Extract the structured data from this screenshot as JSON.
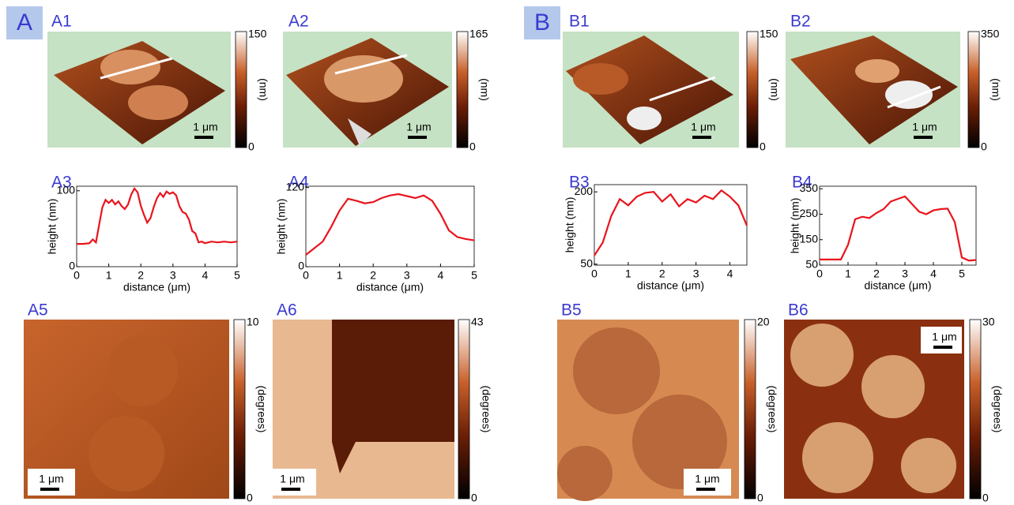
{
  "groups": [
    {
      "label": "A"
    },
    {
      "label": "B"
    }
  ],
  "panels": [
    {
      "label": "A1",
      "colorbar": {
        "max": 150,
        "min": 0,
        "unit": "(nm)"
      },
      "scale_bar": "1 μm"
    },
    {
      "label": "A2",
      "colorbar": {
        "max": 165,
        "min": 0,
        "unit": "(nm)"
      },
      "scale_bar": "1 μm"
    },
    {
      "label": "B1",
      "colorbar": {
        "max": 150,
        "min": 0,
        "unit": "(nm)"
      },
      "scale_bar": "1 μm"
    },
    {
      "label": "B2",
      "colorbar": {
        "max": 350,
        "min": 0,
        "unit": "(nm)"
      },
      "scale_bar": "1 μm"
    },
    {
      "label": "A5",
      "colorbar": {
        "max": 10,
        "min": 0,
        "unit": "(degrees)"
      },
      "scale_bar": "1 μm"
    },
    {
      "label": "A6",
      "colorbar": {
        "max": 43,
        "min": 0,
        "unit": "(degrees)"
      },
      "scale_bar": "1 μm"
    },
    {
      "label": "B5",
      "colorbar": {
        "max": 20,
        "min": 0,
        "unit": "(degrees)"
      },
      "scale_bar": "1 μm"
    },
    {
      "label": "B6",
      "colorbar": {
        "max": 30,
        "min": 0,
        "unit": "(degrees)"
      },
      "scale_bar": "1 μm"
    }
  ],
  "chart_data": [
    {
      "type": "line",
      "label": "A3",
      "xlabel": "distance (μm)",
      "ylabel": "height (nm)",
      "x": [
        0,
        0.2,
        0.4,
        0.5,
        0.6,
        0.7,
        0.8,
        0.9,
        1.0,
        1.1,
        1.2,
        1.3,
        1.4,
        1.5,
        1.6,
        1.7,
        1.8,
        1.9,
        2.0,
        2.1,
        2.2,
        2.3,
        2.4,
        2.5,
        2.6,
        2.7,
        2.8,
        2.9,
        3.0,
        3.1,
        3.2,
        3.3,
        3.4,
        3.5,
        3.6,
        3.7,
        3.8,
        3.9,
        4.0,
        4.2,
        4.4,
        4.6,
        4.8,
        5.0
      ],
      "series": [
        {
          "color": "#e8141c",
          "values": [
            30,
            30,
            31,
            36,
            32,
            55,
            78,
            88,
            84,
            88,
            82,
            86,
            80,
            76,
            82,
            95,
            103,
            98,
            80,
            68,
            58,
            64,
            78,
            90,
            97,
            92,
            99,
            96,
            98,
            94,
            80,
            72,
            70,
            62,
            47,
            44,
            32,
            33,
            31,
            33,
            32,
            33,
            32,
            33
          ]
        }
      ],
      "xlim": [
        0,
        5
      ],
      "ylim": [
        0,
        106
      ],
      "xticks": [
        0,
        1,
        2,
        3,
        4,
        5
      ],
      "yticks": [
        0,
        100
      ]
    },
    {
      "type": "line",
      "label": "A4",
      "xlabel": "distance (μm)",
      "ylabel": "height (nm)",
      "x": [
        0,
        0.25,
        0.5,
        0.75,
        1,
        1.25,
        1.5,
        1.75,
        2,
        2.25,
        2.5,
        2.75,
        3,
        3.25,
        3.5,
        3.75,
        4,
        4.25,
        4.5,
        4.75,
        5
      ],
      "series": [
        {
          "color": "#e8141c",
          "values": [
            18,
            28,
            38,
            60,
            85,
            103,
            100,
            96,
            98,
            104,
            108,
            110,
            107,
            104,
            108,
            100,
            80,
            55,
            45,
            42,
            40
          ]
        }
      ],
      "xlim": [
        0,
        5
      ],
      "ylim": [
        0,
        122
      ],
      "xticks": [
        0,
        1,
        2,
        3,
        4,
        5
      ],
      "yticks": [
        0,
        120
      ]
    },
    {
      "type": "line",
      "label": "B3",
      "xlabel": "distance (μm)",
      "ylabel": "height (nm)",
      "x": [
        0,
        0.25,
        0.5,
        0.75,
        1,
        1.25,
        1.5,
        1.75,
        2,
        2.25,
        2.5,
        2.75,
        3,
        3.25,
        3.5,
        3.75,
        4,
        4.25,
        4.5
      ],
      "series": [
        {
          "color": "#e8141c",
          "values": [
            68,
            95,
            150,
            185,
            172,
            190,
            198,
            200,
            180,
            195,
            170,
            185,
            178,
            192,
            185,
            203,
            190,
            172,
            130
          ]
        }
      ],
      "xlim": [
        0,
        4.5
      ],
      "ylim": [
        48,
        215
      ],
      "xticks": [
        0,
        1,
        2,
        3,
        4
      ],
      "yticks": [
        50,
        200
      ]
    },
    {
      "type": "line",
      "label": "B4",
      "xlabel": "distance (μm)",
      "ylabel": "height (nm)",
      "x": [
        0,
        0.25,
        0.5,
        0.75,
        1,
        1.25,
        1.5,
        1.75,
        2,
        2.25,
        2.5,
        2.75,
        3,
        3.25,
        3.5,
        3.75,
        4,
        4.25,
        4.5,
        4.75,
        5,
        5.25,
        5.5
      ],
      "series": [
        {
          "color": "#e8141c",
          "values": [
            72,
            72,
            72,
            72,
            130,
            230,
            240,
            235,
            255,
            270,
            300,
            310,
            320,
            290,
            260,
            250,
            265,
            270,
            272,
            220,
            80,
            68,
            70
          ]
        }
      ],
      "xlim": [
        0,
        5.5
      ],
      "ylim": [
        50,
        360
      ],
      "xticks": [
        0,
        1,
        2,
        3,
        4,
        5
      ],
      "yticks": [
        50,
        150,
        250,
        350
      ]
    }
  ]
}
